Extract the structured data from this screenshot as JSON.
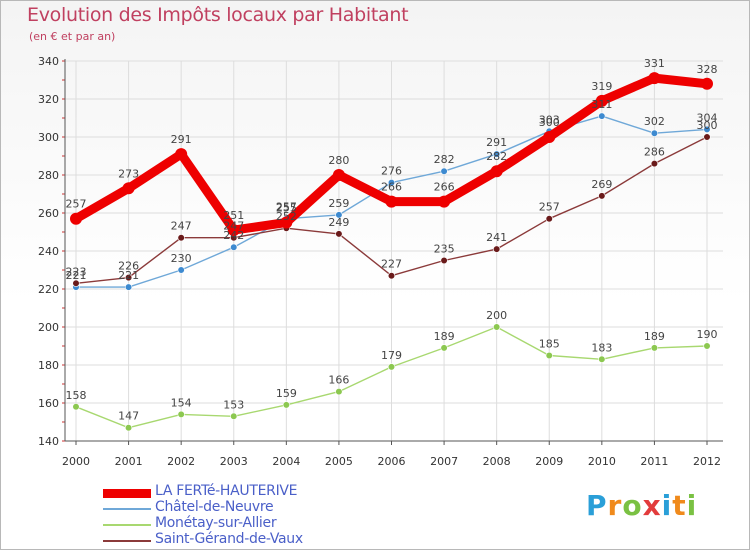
{
  "brand": {
    "letters": [
      "P",
      "r",
      "o",
      "x",
      "i",
      "t",
      "i"
    ],
    "colors": [
      "#2a9fd8",
      "#f08a1c",
      "#7ac143",
      "#e23c3c",
      "#2a9fd8",
      "#f08a1c",
      "#7ac143"
    ]
  },
  "chart_data": {
    "type": "line",
    "title": "Evolution des Impôts locaux par Habitant",
    "subtitle": "(en € et par an)",
    "x": [
      "2000",
      "2001",
      "2002",
      "2003",
      "2004",
      "2005",
      "2006",
      "2007",
      "2008",
      "2009",
      "2010",
      "2011",
      "2012"
    ],
    "ylim": [
      140,
      340
    ],
    "yticks": [
      140,
      160,
      180,
      200,
      220,
      240,
      260,
      280,
      300,
      320,
      340
    ],
    "grid": true,
    "legend_position": "bottom-left",
    "series": [
      {
        "name": "LA FERTé-HAUTERIVE",
        "color": "#ee0000",
        "marker_color": "#ee0000",
        "values": [
          257,
          273,
          291,
          251,
          255,
          280,
          266,
          266,
          282,
          300,
          319,
          331,
          328
        ]
      },
      {
        "name": "Châtel-de-Neuvre",
        "color": "#6fa8d8",
        "marker_color": "#3d8ad0",
        "values": [
          221,
          221,
          230,
          242,
          257,
          259,
          276,
          282,
          291,
          303,
          311,
          302,
          304
        ]
      },
      {
        "name": "Monétay-sur-Allier",
        "color": "#a8d870",
        "marker_color": "#8cc850",
        "values": [
          158,
          147,
          154,
          153,
          159,
          166,
          179,
          189,
          200,
          185,
          183,
          189,
          190
        ]
      },
      {
        "name": "Saint-Gérand-de-Vaux",
        "color": "#8b3a3a",
        "marker_color": "#6a1a1a",
        "values": [
          223,
          226,
          247,
          247,
          252,
          249,
          227,
          235,
          241,
          257,
          269,
          286,
          300
        ]
      }
    ]
  }
}
